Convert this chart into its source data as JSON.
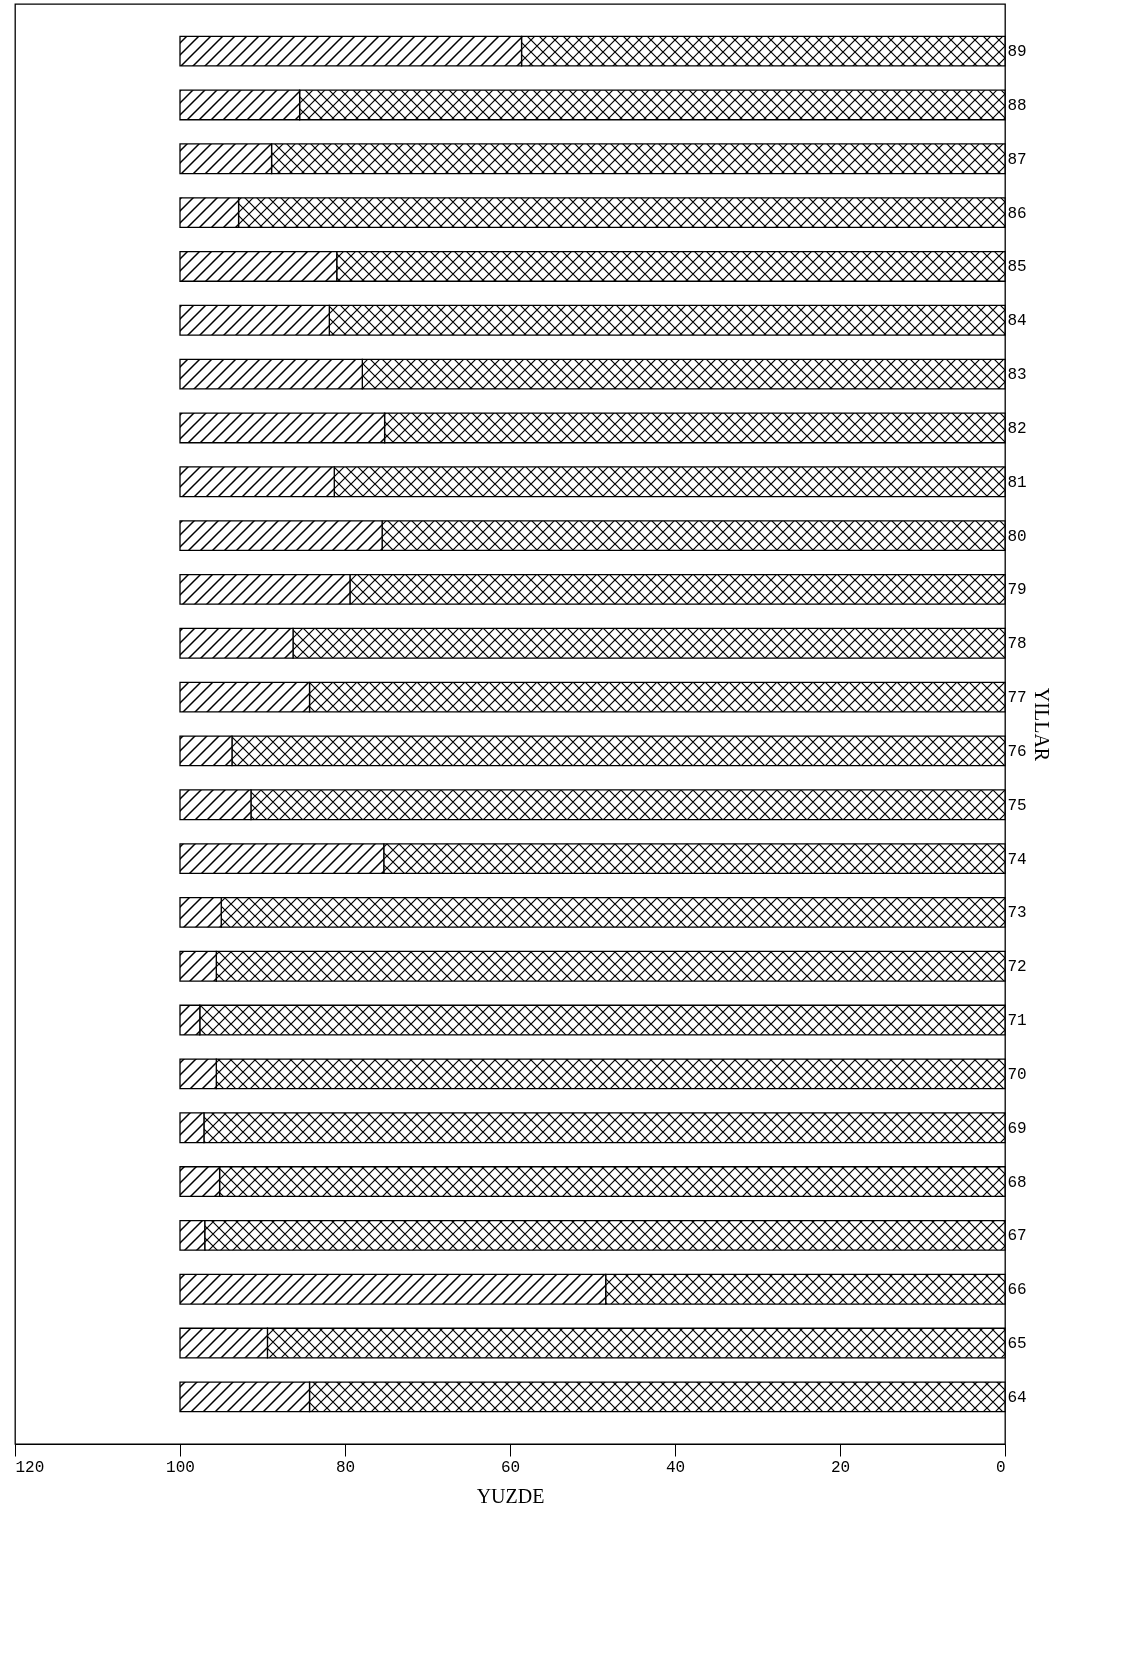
{
  "chart_data": {
    "type": "bar",
    "orientation": "horizontal",
    "stacked": true,
    "xlabel": "YUZDE",
    "ylabel": "YILLAR",
    "categories": [
      "89",
      "88",
      "87",
      "86",
      "85",
      "84",
      "83",
      "82",
      "81",
      "80",
      "79",
      "78",
      "77",
      "76",
      "75",
      "74",
      "73",
      "72",
      "71",
      "70",
      "69",
      "68",
      "67",
      "66",
      "65",
      "64"
    ],
    "series": [
      {
        "color": "#000000",
        "values": [
          58.6,
          85.5,
          88.9,
          92.9,
          81.0,
          81.9,
          77.9,
          75.2,
          81.3,
          75.5,
          79.4,
          86.3,
          84.3,
          93.7,
          91.4,
          75.3,
          95.0,
          95.6,
          97.6,
          95.6,
          97.1,
          95.2,
          97.0,
          48.4,
          89.4,
          84.3
        ]
      },
      {
        "color": "#000000",
        "values": [
          41.4,
          14.5,
          11.1,
          7.1,
          19.0,
          18.1,
          22.1,
          24.8,
          18.7,
          24.5,
          20.6,
          13.7,
          15.7,
          6.3,
          8.6,
          24.7,
          5.0,
          4.4,
          2.4,
          4.4,
          2.9,
          4.8,
          3.0,
          51.6,
          10.6,
          15.7
        ]
      }
    ],
    "xlim": [
      120,
      0
    ],
    "xticks": [
      120,
      100,
      80,
      60,
      40,
      20,
      0
    ],
    "grid": false,
    "legend": false
  }
}
